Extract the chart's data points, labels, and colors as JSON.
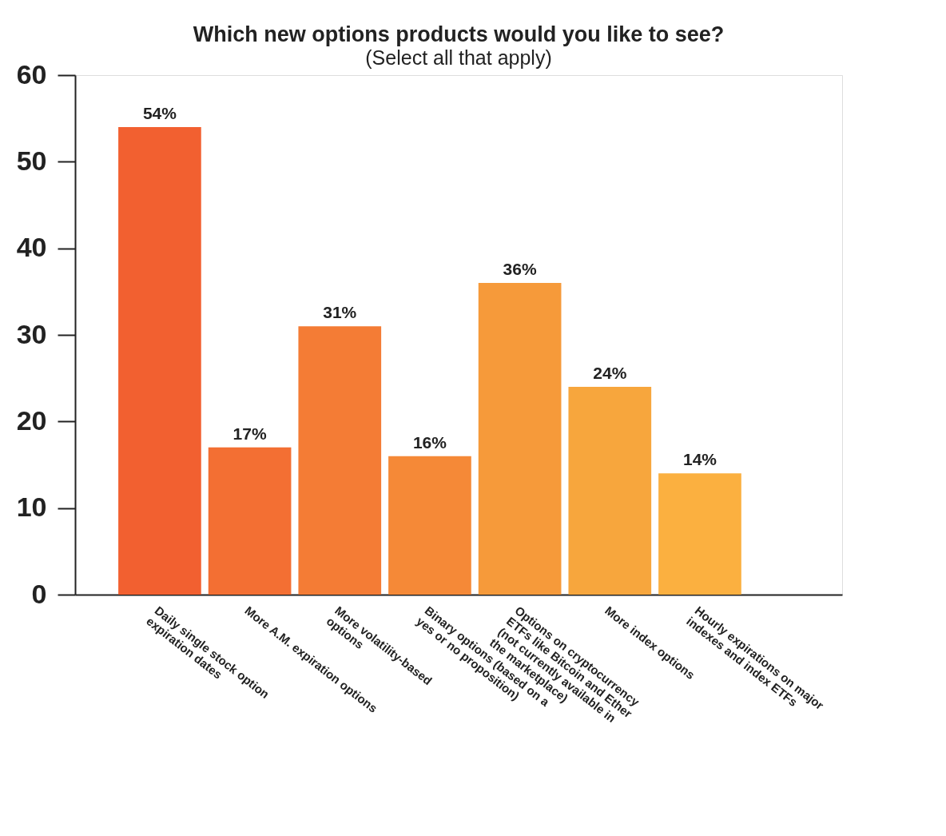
{
  "chart_data": {
    "type": "bar",
    "title": "Which new options products would you like to see?",
    "subtitle": "(Select all that apply)",
    "categories": [
      "Daily single stock option expiration dates",
      "More A.M. expiration options",
      "More volatility-based options",
      "Binary options (based on a yes or no proposition)",
      "Options on cryptocurrency ETFs like Bitcoin and Ether (not currently available in the marketplace)",
      "More index options",
      "Hourly expirations on major indexes and index ETFs"
    ],
    "values": [
      54,
      17,
      31,
      16,
      36,
      24,
      14
    ],
    "colors": [
      "#f26030",
      "#f36f33",
      "#f47c35",
      "#f58937",
      "#f69a3a",
      "#f7a63d",
      "#fbb040"
    ],
    "value_labels": [
      "54%",
      "17%",
      "31%",
      "16%",
      "36%",
      "24%",
      "14%"
    ],
    "ylim": [
      0,
      60
    ],
    "yticks": [
      0,
      10,
      20,
      30,
      40,
      50,
      60
    ],
    "grid": false,
    "legend": false
  }
}
